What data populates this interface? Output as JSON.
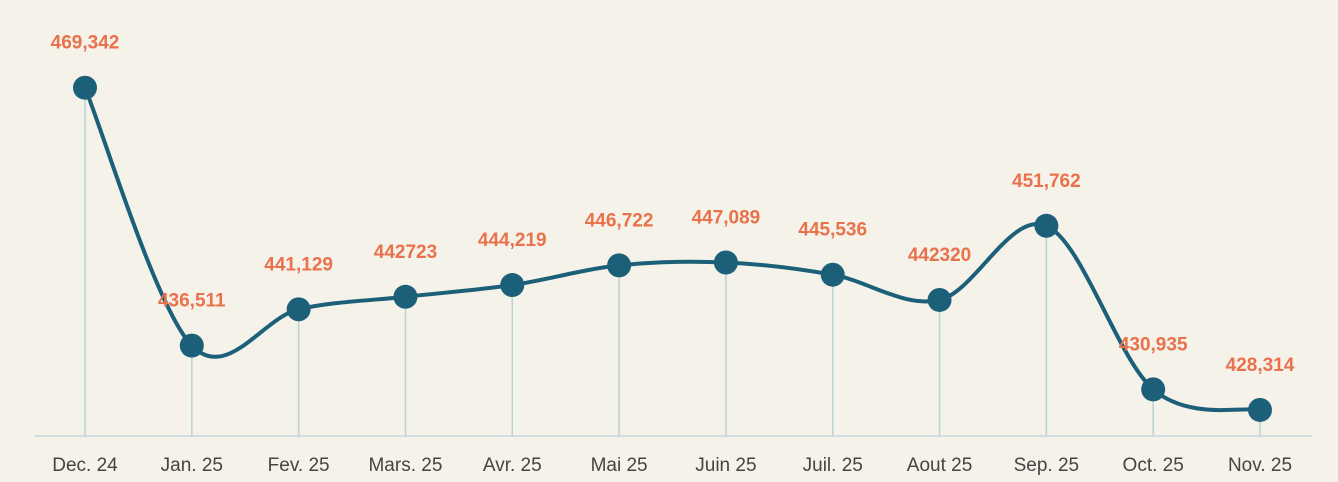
{
  "chart_data": {
    "type": "line",
    "categories": [
      "Dec. 24",
      "Jan. 25",
      "Fev. 25",
      "Mars. 25",
      "Avr. 25",
      "Mai 25",
      "Juin 25",
      "Juil. 25",
      "Aout 25",
      "Sep. 25",
      "Oct. 25",
      "Nov. 25"
    ],
    "values": [
      469342,
      436511,
      441129,
      442723,
      444219,
      446722,
      447089,
      445536,
      442320,
      451762,
      430935,
      428314
    ],
    "value_labels": [
      "469,342",
      "436,511",
      "441,129",
      "442723",
      "444,219",
      "446,722",
      "447,089",
      "445,536",
      "442320",
      "451,762",
      "430,935",
      "428,314"
    ],
    "color": "#1c5f78",
    "ylim": [
      425000,
      480000
    ]
  }
}
